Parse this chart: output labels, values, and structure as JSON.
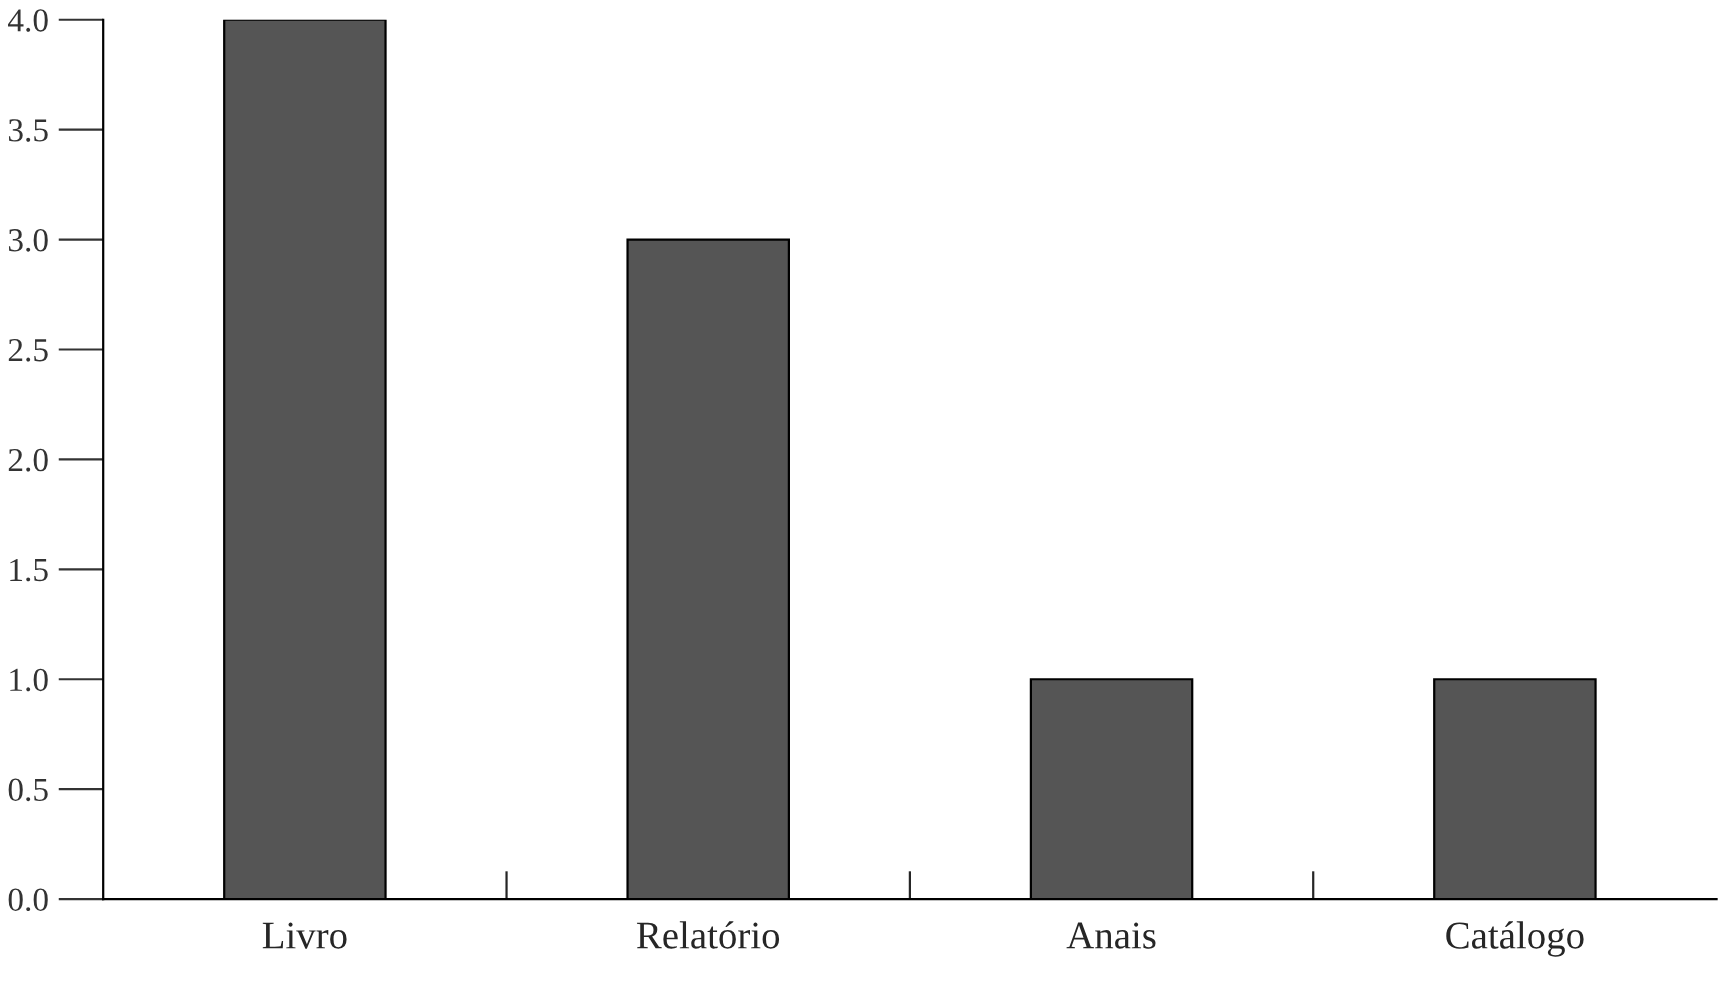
{
  "chart_data": {
    "type": "bar",
    "categories": [
      "Livro",
      "Relatório",
      "Anais",
      "Catálogo"
    ],
    "values": [
      4,
      3,
      1,
      1
    ],
    "color": "#555555",
    "ylim": [
      0,
      4
    ],
    "yticks": [
      {
        "value": 0,
        "label": "0.0"
      },
      {
        "value": 0.5,
        "label": "0.5"
      },
      {
        "value": 1,
        "label": "1.0"
      },
      {
        "value": 1.5,
        "label": "1.5"
      },
      {
        "value": 2,
        "label": "2.0"
      },
      {
        "value": 2.5,
        "label": "2.5"
      },
      {
        "value": 3,
        "label": "3.0"
      },
      {
        "value": 3.5,
        "label": "3.5"
      },
      {
        "value": 4,
        "label": "4.0"
      }
    ],
    "grid": false,
    "legend": false
  }
}
